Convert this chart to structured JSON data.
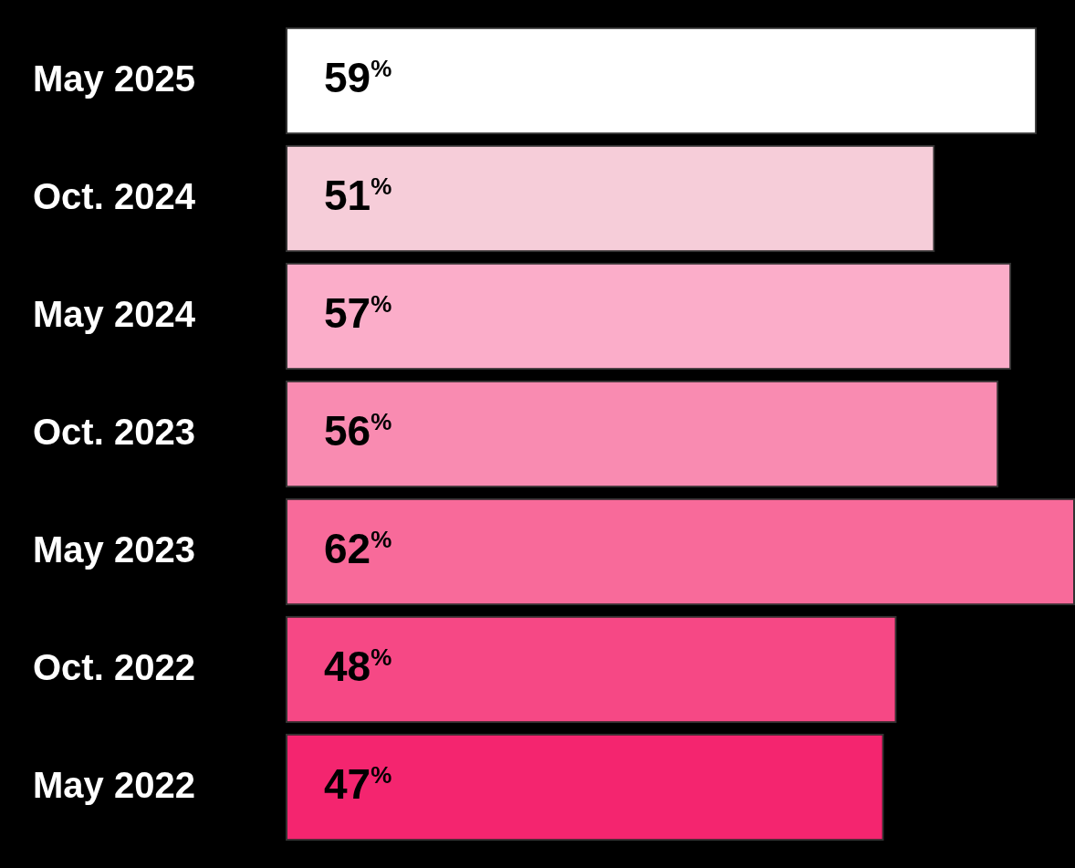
{
  "chart_data": {
    "type": "bar",
    "orientation": "horizontal",
    "categories": [
      "May 2025",
      "Oct. 2024",
      "May 2024",
      "Oct. 2023",
      "May 2023",
      "Oct. 2022",
      "May 2022"
    ],
    "values": [
      59,
      51,
      57,
      56,
      62,
      48,
      47
    ],
    "colors": [
      "#ffffff",
      "#f6cdd9",
      "#fbadc9",
      "#f98bb1",
      "#f86a9a",
      "#f64885",
      "#f4256f"
    ],
    "value_labels": [
      "59$^{%}$",
      "51$^{%}$",
      "57$^{%}$",
      "56$^{%}$",
      "62$^{%}$",
      "48$^{%}$",
      "47$^{%}$"
    ],
    "xlim": [
      0,
      62
    ],
    "tick_labels": "y",
    "grid": false,
    "legend": false
  }
}
